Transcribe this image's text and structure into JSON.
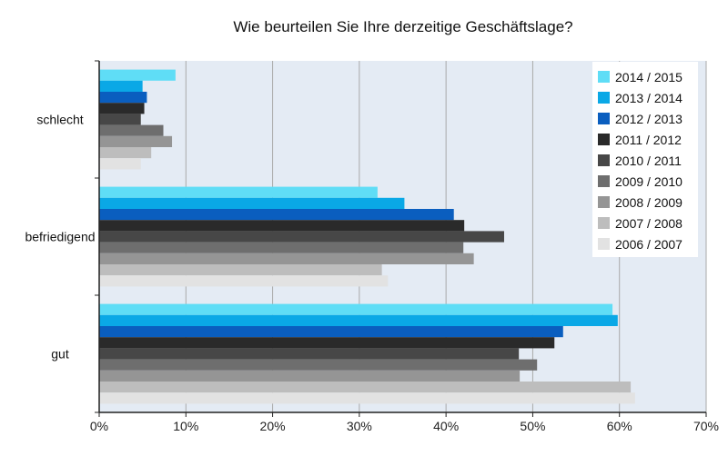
{
  "chart_data": {
    "type": "bar",
    "orientation": "horizontal",
    "title": "Wie beurteilen Sie Ihre derzeitige Geschäftslage?",
    "xlabel": "",
    "ylabel": "",
    "categories": [
      "schlecht",
      "befriedigend",
      "gut"
    ],
    "xlim": [
      0,
      70
    ],
    "x_ticks": [
      "0%",
      "10%",
      "20%",
      "30%",
      "40%",
      "50%",
      "60%",
      "70%"
    ],
    "grid": "vertical",
    "legend_position": "top-right",
    "series": [
      {
        "name": "2014 / 2015",
        "color": "#5FDDF6",
        "values": [
          8.8,
          32.1,
          59.2
        ]
      },
      {
        "name": "2013 / 2014",
        "color": "#0AA8E6",
        "values": [
          5.0,
          35.2,
          59.8
        ]
      },
      {
        "name": "2012 / 2013",
        "color": "#0A5EBF",
        "values": [
          5.5,
          40.9,
          53.5
        ]
      },
      {
        "name": "2011 / 2012",
        "color": "#2A2A2A",
        "values": [
          5.2,
          42.1,
          52.5
        ]
      },
      {
        "name": "2010 / 2011",
        "color": "#474747",
        "values": [
          4.8,
          46.7,
          48.4
        ]
      },
      {
        "name": "2009 / 2010",
        "color": "#6E6E6E",
        "values": [
          7.4,
          42.0,
          50.5
        ]
      },
      {
        "name": "2008 / 2009",
        "color": "#959595",
        "values": [
          8.4,
          43.2,
          48.5
        ]
      },
      {
        "name": "2007 / 2008",
        "color": "#BDBDBD",
        "values": [
          6.0,
          32.6,
          61.3
        ]
      },
      {
        "name": "2006 / 2007",
        "color": "#E2E2E2",
        "values": [
          4.8,
          33.3,
          61.8
        ]
      }
    ]
  },
  "colors": {
    "plot_background": "#E4EBF4",
    "gridline": "#A9A9A9",
    "axis": "#222222",
    "legend_background": "#FFFFFF"
  }
}
